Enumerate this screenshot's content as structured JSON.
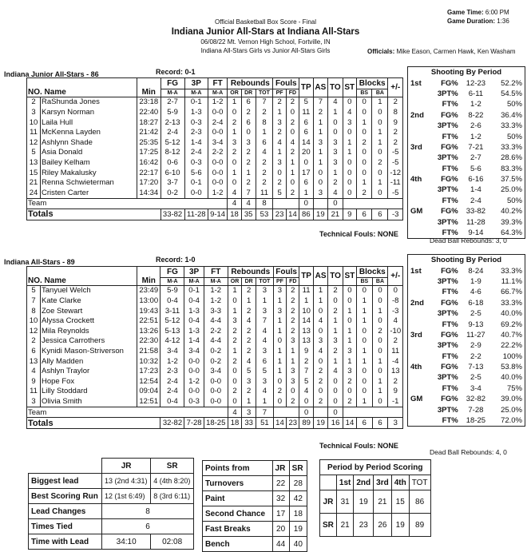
{
  "header": {
    "subtitle": "Official Basketball Box Score - Final",
    "title": "Indiana Junior All-Stars at Indiana All-Stars",
    "venue": "06/08/22 Mt. Vernon High School, Fortville, IN",
    "matchup": "Indiana All-Stars Girls vs Junior All-Stars Girls",
    "game_time_label": "Game Time:",
    "game_time": "6:00 PM",
    "duration_label": "Game Duration:",
    "duration": "1:36",
    "officials_label": "Officials:",
    "officials": "Mike Eason, Carmen Hawk, Ken Washam"
  },
  "columns": {
    "no_name": "NO. Name",
    "min": "Min",
    "fg": "FG",
    "p3": "3P",
    "ft": "FT",
    "ma": "M-A",
    "reb": "Rebounds",
    "or": "OR",
    "dr": "DR",
    "tot": "TOT",
    "fouls": "Fouls",
    "pf": "PF",
    "fd": "FD",
    "tp": "TP",
    "as": "AS",
    "to": "TO",
    "st": "ST",
    "blocks": "Blocks",
    "bs": "BS",
    "ba": "BA",
    "pm": "+/-",
    "team": "Team",
    "totals": "Totals"
  },
  "teams": [
    {
      "title": "Indiana Junior All-Stars - 86",
      "record": "Record: 0-1",
      "players": [
        [
          "2",
          "RaShunda Jones",
          "23:18",
          "2-7",
          "0-1",
          "1-2",
          "1",
          "6",
          "7",
          "2",
          "2",
          "5",
          "7",
          "4",
          "0",
          "0",
          "1",
          "2"
        ],
        [
          "3",
          "Karsyn Norman",
          "22:40",
          "5-9",
          "1-3",
          "0-0",
          "0",
          "2",
          "2",
          "1",
          "0",
          "11",
          "2",
          "1",
          "4",
          "0",
          "0",
          "8"
        ],
        [
          "10",
          "Laila Hull",
          "18:27",
          "2-13",
          "0-3",
          "2-4",
          "2",
          "6",
          "8",
          "3",
          "2",
          "6",
          "1",
          "0",
          "3",
          "1",
          "0",
          "9"
        ],
        [
          "11",
          "McKenna Layden",
          "21:42",
          "2-4",
          "2-3",
          "0-0",
          "1",
          "0",
          "1",
          "2",
          "0",
          "6",
          "1",
          "0",
          "0",
          "0",
          "1",
          "2"
        ],
        [
          "12",
          "Ashlynn Shade",
          "25:35",
          "5-12",
          "1-4",
          "3-4",
          "3",
          "3",
          "6",
          "4",
          "4",
          "14",
          "3",
          "3",
          "1",
          "2",
          "1",
          "2"
        ],
        [
          "5",
          "Asia Donald",
          "17:25",
          "8-12",
          "2-4",
          "2-2",
          "2",
          "2",
          "4",
          "1",
          "2",
          "20",
          "1",
          "3",
          "1",
          "0",
          "0",
          "-5"
        ],
        [
          "13",
          "Bailey Kelham",
          "16:42",
          "0-6",
          "0-3",
          "0-0",
          "0",
          "2",
          "2",
          "3",
          "1",
          "0",
          "1",
          "3",
          "0",
          "0",
          "2",
          "-5"
        ],
        [
          "15",
          "Riley Makalusky",
          "22:17",
          "6-10",
          "5-6",
          "0-0",
          "1",
          "1",
          "2",
          "0",
          "1",
          "17",
          "0",
          "1",
          "0",
          "0",
          "0",
          "-12"
        ],
        [
          "21",
          "Renna Schwieterman",
          "17:20",
          "3-7",
          "0-1",
          "0-0",
          "0",
          "2",
          "2",
          "2",
          "0",
          "6",
          "0",
          "2",
          "0",
          "1",
          "1",
          "-11"
        ],
        [
          "24",
          "Cristen Carter",
          "14:34",
          "0-2",
          "0-0",
          "1-2",
          "4",
          "7",
          "11",
          "5",
          "2",
          "1",
          "3",
          "4",
          "0",
          "2",
          "0",
          "-5"
        ]
      ],
      "team_row": {
        "or": "4",
        "dr": "4",
        "tot": "8",
        "tp": "0",
        "to": "0"
      },
      "totals": [
        "33-82",
        "11-28",
        "9-14",
        "18",
        "35",
        "53",
        "23",
        "14",
        "86",
        "19",
        "21",
        "9",
        "6",
        "6",
        "-3"
      ],
      "technical_fouls": "Technical Fouls: NONE",
      "shooting": [
        [
          "1st",
          "FG%",
          "12-23",
          "52.2%"
        ],
        [
          "",
          "3PT%",
          "6-11",
          "54.5%"
        ],
        [
          "",
          "FT%",
          "1-2",
          "50%"
        ],
        [
          "2nd",
          "FG%",
          "8-22",
          "36.4%"
        ],
        [
          "",
          "3PT%",
          "2-6",
          "33.3%"
        ],
        [
          "",
          "FT%",
          "1-2",
          "50%"
        ],
        [
          "3rd",
          "FG%",
          "7-21",
          "33.3%"
        ],
        [
          "",
          "3PT%",
          "2-7",
          "28.6%"
        ],
        [
          "",
          "FT%",
          "5-6",
          "83.3%"
        ],
        [
          "4th",
          "FG%",
          "6-16",
          "37.5%"
        ],
        [
          "",
          "3PT%",
          "1-4",
          "25.0%"
        ],
        [
          "",
          "FT%",
          "2-4",
          "50%"
        ],
        [
          "GM",
          "FG%",
          "33-82",
          "40.2%"
        ],
        [
          "",
          "3PT%",
          "11-28",
          "39.3%"
        ],
        [
          "",
          "FT%",
          "9-14",
          "64.3%"
        ]
      ],
      "dead_ball": "Dead Ball Rebounds: 3, 0"
    },
    {
      "title": "Indiana All-Stars - 89",
      "record": "Record: 1-0",
      "players": [
        [
          "5",
          "Tanyuel Welch",
          "23:49",
          "5-9",
          "0-1",
          "1-2",
          "1",
          "2",
          "3",
          "3",
          "2",
          "11",
          "1",
          "2",
          "0",
          "0",
          "0",
          "0"
        ],
        [
          "7",
          "Kate Clarke",
          "13:00",
          "0-4",
          "0-4",
          "1-2",
          "0",
          "1",
          "1",
          "1",
          "2",
          "1",
          "1",
          "0",
          "0",
          "1",
          "0",
          "-8"
        ],
        [
          "8",
          "Zoe Stewart",
          "19:43",
          "3-11",
          "1-3",
          "3-3",
          "1",
          "2",
          "3",
          "3",
          "2",
          "10",
          "0",
          "2",
          "1",
          "1",
          "1",
          "-3"
        ],
        [
          "10",
          "Alyssa Crockett",
          "22:51",
          "5-12",
          "0-4",
          "4-4",
          "3",
          "4",
          "7",
          "1",
          "2",
          "14",
          "4",
          "1",
          "0",
          "1",
          "0",
          "4"
        ],
        [
          "12",
          "Mila Reynolds",
          "13:26",
          "5-13",
          "1-3",
          "2-2",
          "2",
          "2",
          "4",
          "1",
          "2",
          "13",
          "0",
          "1",
          "1",
          "0",
          "2",
          "-10"
        ],
        [
          "2",
          "Jessica Carrothers",
          "22:30",
          "4-12",
          "1-4",
          "4-4",
          "2",
          "2",
          "4",
          "0",
          "3",
          "13",
          "3",
          "3",
          "1",
          "0",
          "0",
          "2"
        ],
        [
          "6",
          "Kynidi Mason-Striverson",
          "21:58",
          "3-4",
          "3-4",
          "0-2",
          "1",
          "2",
          "3",
          "1",
          "1",
          "9",
          "4",
          "2",
          "3",
          "1",
          "0",
          "11"
        ],
        [
          "13",
          "Ally Madden",
          "10:32",
          "1-2",
          "0-0",
          "0-2",
          "2",
          "4",
          "6",
          "1",
          "1",
          "2",
          "0",
          "1",
          "1",
          "1",
          "1",
          "-4"
        ],
        [
          "4",
          "Ashlyn Traylor",
          "17:23",
          "2-3",
          "0-0",
          "3-4",
          "0",
          "5",
          "5",
          "1",
          "3",
          "7",
          "2",
          "4",
          "3",
          "0",
          "0",
          "13"
        ],
        [
          "9",
          "Hope Fox",
          "12:54",
          "2-4",
          "1-2",
          "0-0",
          "0",
          "3",
          "3",
          "0",
          "3",
          "5",
          "2",
          "0",
          "2",
          "0",
          "1",
          "2"
        ],
        [
          "11",
          "Lilly Stoddard",
          "09:04",
          "2-4",
          "0-0",
          "0-0",
          "2",
          "2",
          "4",
          "2",
          "0",
          "4",
          "0",
          "0",
          "0",
          "0",
          "1",
          "9"
        ],
        [
          "3",
          "Olivia Smith",
          "12:51",
          "0-4",
          "0-3",
          "0-0",
          "0",
          "1",
          "1",
          "0",
          "2",
          "0",
          "2",
          "0",
          "2",
          "1",
          "0",
          "-1"
        ]
      ],
      "team_row": {
        "or": "4",
        "dr": "3",
        "tot": "7",
        "tp": "0",
        "to": "0"
      },
      "totals": [
        "32-82",
        "7-28",
        "18-25",
        "18",
        "33",
        "51",
        "14",
        "23",
        "89",
        "19",
        "16",
        "14",
        "6",
        "6",
        "3"
      ],
      "technical_fouls": "Technical Fouls: NONE",
      "shooting": [
        [
          "1st",
          "FG%",
          "8-24",
          "33.3%"
        ],
        [
          "",
          "3PT%",
          "1-9",
          "11.1%"
        ],
        [
          "",
          "FT%",
          "4-6",
          "66.7%"
        ],
        [
          "2nd",
          "FG%",
          "6-18",
          "33.3%"
        ],
        [
          "",
          "3PT%",
          "2-5",
          "40.0%"
        ],
        [
          "",
          "FT%",
          "9-13",
          "69.2%"
        ],
        [
          "3rd",
          "FG%",
          "11-27",
          "40.7%"
        ],
        [
          "",
          "3PT%",
          "2-9",
          "22.2%"
        ],
        [
          "",
          "FT%",
          "2-2",
          "100%"
        ],
        [
          "4th",
          "FG%",
          "7-13",
          "53.8%"
        ],
        [
          "",
          "3PT%",
          "2-5",
          "40.0%"
        ],
        [
          "",
          "FT%",
          "3-4",
          "75%"
        ],
        [
          "GM",
          "FG%",
          "32-82",
          "39.0%"
        ],
        [
          "",
          "3PT%",
          "7-28",
          "25.0%"
        ],
        [
          "",
          "FT%",
          "18-25",
          "72.0%"
        ]
      ],
      "dead_ball": "Dead Ball Rebounds: 4, 0"
    }
  ],
  "shooting_title": "Shooting By Period",
  "game_stats": {
    "jr": "JR",
    "sr": "SR",
    "biggest_lead": {
      "label": "Biggest lead",
      "jr": "13 (2nd 4:31)",
      "sr": "4 (4th 8:20)"
    },
    "best_run": {
      "label": "Best Scoring Run",
      "jr": "12 (1st 6:49)",
      "sr": "8 (3rd 6:11)"
    },
    "lead_changes": {
      "label": "Lead Changes",
      "value": "8"
    },
    "times_tied": {
      "label": "Times Tied",
      "value": "6"
    },
    "time_with_lead": {
      "label": "Time with Lead",
      "jr": "34:10",
      "sr": "02:08"
    }
  },
  "points_from": {
    "title": "Points from",
    "jr": "JR",
    "sr": "SR",
    "rows": [
      [
        "Turnovers",
        "22",
        "28"
      ],
      [
        "Paint",
        "32",
        "42"
      ],
      [
        "Second Chance",
        "17",
        "18"
      ],
      [
        "Fast Breaks",
        "20",
        "19"
      ],
      [
        "Bench",
        "44",
        "40"
      ]
    ]
  },
  "period_scoring": {
    "title": "Period by Period Scoring",
    "headers": [
      "1st",
      "2nd",
      "3rd",
      "4th",
      "TOT"
    ],
    "rows": [
      [
        "JR",
        "31",
        "19",
        "21",
        "15",
        "86"
      ],
      [
        "SR",
        "21",
        "23",
        "26",
        "19",
        "89"
      ]
    ]
  }
}
